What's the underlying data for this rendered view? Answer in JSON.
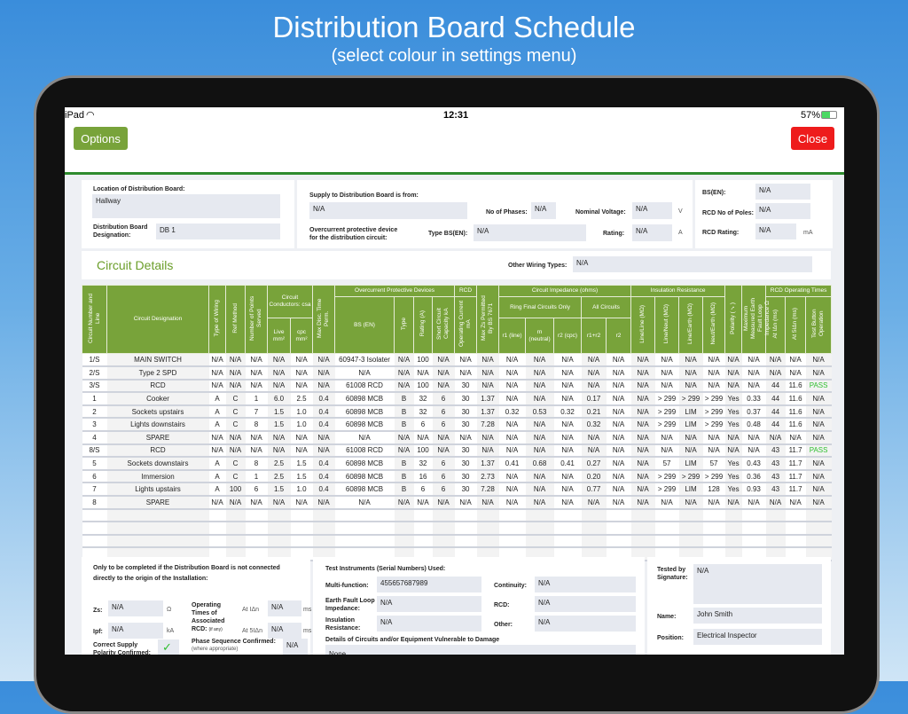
{
  "banner": {
    "title": "Distribution Board Schedule",
    "subtitle": "(select colour in settings menu)"
  },
  "status": {
    "device": "iPad",
    "time": "12:31",
    "battery": "57%",
    "battery_level": 57
  },
  "toolbar": {
    "options": "Options",
    "close": "Close",
    "accent": "#78a33a",
    "close_color": "#ee1c1c"
  },
  "board": {
    "location_label": "Location of Distribution Board:",
    "location": "Hallway",
    "designation_label": "Distribution Board Designation:",
    "designation": "DB 1",
    "supply_label": "Supply to Distribution Board is from:",
    "supply": "N/A",
    "phases_label": "No of Phases:",
    "phases": "N/A",
    "voltage_label": "Nominal Voltage:",
    "voltage": "N/A",
    "voltage_unit": "V",
    "ocpd_label": "Overcurrent protective device for the distribution circuit:",
    "type_label": "Type BS(EN):",
    "type": "N/A",
    "rating_label": "Rating:",
    "rating": "N/A",
    "rating_unit": "A",
    "bs_label": "BS(EN):",
    "bs": "N/A",
    "rcd_poles_label": "RCD No of Poles:",
    "rcd_poles": "N/A",
    "rcd_rating_label": "RCD Rating:",
    "rcd_rating": "N/A",
    "rcd_rating_unit": "mA"
  },
  "circuit_details": {
    "title": "Circuit Details",
    "other_label": "Other Wiring Types:",
    "other": "N/A"
  },
  "table": {
    "groups": {
      "conductors": "Circuit Conductors: csa",
      "ocpd": "Overcurrent Protective Devices",
      "rcd": "RCD",
      "impedance": "Circuit Impedance (ohms)",
      "ring": "Ring Final Circuits Only",
      "all": "All Circuits",
      "insulation": "Insulation Resistance",
      "rcd_times": "RCD Operating Times"
    },
    "headers": [
      "Circuit Number and Line",
      "Circuit Designation",
      "Type of Wiring",
      "Ref Method",
      "Number of Points Served",
      "Live mm²",
      "cpc mm²",
      "Max Disc. Time Perm.",
      "BS (EN)",
      "Type",
      "Rating (A)",
      "Short Circuit Capacity kA",
      "Operating Current mA",
      "Max Zs Permitted By BS 7671",
      "r1 (line)",
      "rn (neutral)",
      "r2 (cpc)",
      "r1+r2",
      "r2",
      "Line/Line (MΩ)",
      "Line/Neut (MΩ)",
      "Line/Earth (MΩ)",
      "Neut/Earth (MΩ)",
      "Polarity (✓)",
      "Maximum Measured Earth Fault Loop Impedance Ω",
      "At IΔn (ms)",
      "At 5IΔn (ms)",
      "Test Button Operation"
    ],
    "rows": [
      [
        "1/S",
        "MAIN SWITCH",
        "N/A",
        "N/A",
        "N/A",
        "N/A",
        "N/A",
        "N/A",
        "60947-3 Isolater",
        "N/A",
        "100",
        "N/A",
        "N/A",
        "N/A",
        "N/A",
        "N/A",
        "N/A",
        "N/A",
        "N/A",
        "N/A",
        "N/A",
        "N/A",
        "N/A",
        "N/A",
        "N/A",
        "N/A",
        "N/A",
        "N/A"
      ],
      [
        "2/S",
        "Type 2 SPD",
        "N/A",
        "N/A",
        "N/A",
        "N/A",
        "N/A",
        "N/A",
        "N/A",
        "N/A",
        "N/A",
        "N/A",
        "N/A",
        "N/A",
        "N/A",
        "N/A",
        "N/A",
        "N/A",
        "N/A",
        "N/A",
        "N/A",
        "N/A",
        "N/A",
        "N/A",
        "N/A",
        "N/A",
        "N/A",
        "N/A"
      ],
      [
        "3/S",
        "RCD",
        "N/A",
        "N/A",
        "N/A",
        "N/A",
        "N/A",
        "N/A",
        "61008 RCD",
        "N/A",
        "100",
        "N/A",
        "30",
        "N/A",
        "N/A",
        "N/A",
        "N/A",
        "N/A",
        "N/A",
        "N/A",
        "N/A",
        "N/A",
        "N/A",
        "N/A",
        "N/A",
        "44",
        "11.6",
        "PASS"
      ],
      [
        "1",
        "Cooker",
        "A",
        "C",
        "1",
        "6.0",
        "2.5",
        "0.4",
        "60898 MCB",
        "B",
        "32",
        "6",
        "30",
        "1.37",
        "N/A",
        "N/A",
        "N/A",
        "0.17",
        "N/A",
        "N/A",
        "> 299",
        "> 299",
        "> 299",
        "Yes",
        "0.33",
        "44",
        "11.6",
        "N/A"
      ],
      [
        "2",
        "Sockets upstairs",
        "A",
        "C",
        "7",
        "1.5",
        "1.0",
        "0.4",
        "60898 MCB",
        "B",
        "32",
        "6",
        "30",
        "1.37",
        "0.32",
        "0.53",
        "0.32",
        "0.21",
        "N/A",
        "N/A",
        "> 299",
        "LIM",
        "> 299",
        "Yes",
        "0.37",
        "44",
        "11.6",
        "N/A"
      ],
      [
        "3",
        "Lights downstairs",
        "A",
        "C",
        "8",
        "1.5",
        "1.0",
        "0.4",
        "60898 MCB",
        "B",
        "6",
        "6",
        "30",
        "7.28",
        "N/A",
        "N/A",
        "N/A",
        "0.32",
        "N/A",
        "N/A",
        "> 299",
        "LIM",
        "> 299",
        "Yes",
        "0.48",
        "44",
        "11.6",
        "N/A"
      ],
      [
        "4",
        "SPARE",
        "N/A",
        "N/A",
        "N/A",
        "N/A",
        "N/A",
        "N/A",
        "N/A",
        "N/A",
        "N/A",
        "N/A",
        "N/A",
        "N/A",
        "N/A",
        "N/A",
        "N/A",
        "N/A",
        "N/A",
        "N/A",
        "N/A",
        "N/A",
        "N/A",
        "N/A",
        "N/A",
        "N/A",
        "N/A",
        "N/A"
      ],
      [
        "8/S",
        "RCD",
        "N/A",
        "N/A",
        "N/A",
        "N/A",
        "N/A",
        "N/A",
        "61008 RCD",
        "N/A",
        "100",
        "N/A",
        "30",
        "N/A",
        "N/A",
        "N/A",
        "N/A",
        "N/A",
        "N/A",
        "N/A",
        "N/A",
        "N/A",
        "N/A",
        "N/A",
        "N/A",
        "43",
        "11.7",
        "PASS"
      ],
      [
        "5",
        "Sockets downstairs",
        "A",
        "C",
        "8",
        "2.5",
        "1.5",
        "0.4",
        "60898 MCB",
        "B",
        "32",
        "6",
        "30",
        "1.37",
        "0.41",
        "0.68",
        "0.41",
        "0.27",
        "N/A",
        "N/A",
        "57",
        "LIM",
        "57",
        "Yes",
        "0.43",
        "43",
        "11.7",
        "N/A"
      ],
      [
        "6",
        "Immersion",
        "A",
        "C",
        "1",
        "2.5",
        "1.5",
        "0.4",
        "60898 MCB",
        "B",
        "16",
        "6",
        "30",
        "2.73",
        "N/A",
        "N/A",
        "N/A",
        "0.20",
        "N/A",
        "N/A",
        "> 299",
        "> 299",
        "> 299",
        "Yes",
        "0.36",
        "43",
        "11.7",
        "N/A"
      ],
      [
        "7",
        "Lights upstairs",
        "A",
        "100",
        "6",
        "1.5",
        "1.0",
        "0.4",
        "60898 MCB",
        "B",
        "6",
        "6",
        "30",
        "7.28",
        "N/A",
        "N/A",
        "N/A",
        "0.77",
        "N/A",
        "N/A",
        "> 299",
        "LIM",
        "128",
        "Yes",
        "0.93",
        "43",
        "11.7",
        "N/A"
      ],
      [
        "8",
        "SPARE",
        "N/A",
        "N/A",
        "N/A",
        "N/A",
        "N/A",
        "N/A",
        "N/A",
        "N/A",
        "N/A",
        "N/A",
        "N/A",
        "N/A",
        "N/A",
        "N/A",
        "N/A",
        "N/A",
        "N/A",
        "N/A",
        "N/A",
        "N/A",
        "N/A",
        "N/A",
        "N/A",
        "N/A",
        "N/A",
        "N/A"
      ]
    ]
  },
  "origin": {
    "note": "Only to be completed if the Distribution Board is not connected directly to the origin of the Installation:",
    "zs_label": "Zs:",
    "zs": "N/A",
    "zs_unit": "Ω",
    "ipf_label": "Ipf:",
    "ipf": "N/A",
    "ipf_unit": "kA",
    "op_label": "Operating Times of Associated RCD:",
    "op_sub": "(if any)",
    "at_in_label": "At IΔn",
    "at_in": "N/A",
    "at_5in_label": "At 5IΔn",
    "at_5in": "N/A",
    "ms": "ms",
    "polarity_label": "Correct Supply Polarity Confirmed:",
    "polarity_checked": true,
    "phase_label": "Phase Sequence Confirmed:",
    "phase_sub": "(where appropriate)",
    "phase": "N/A"
  },
  "instruments": {
    "title": "Test Instruments (Serial Numbers) Used:",
    "multi_label": "Multi-function:",
    "multi": "455657687989",
    "efli_label": "Earth Fault Loop Impedance:",
    "efli": "N/A",
    "ins_label": "Insulation Resistance:",
    "ins": "N/A",
    "cont_label": "Continuity:",
    "cont": "N/A",
    "rcd_label": "RCD:",
    "rcd": "N/A",
    "other_label": "Other:",
    "other": "N/A",
    "vuln_label": "Details of Circuits and/or Equipment Vulnerable to Damage",
    "vuln": "None"
  },
  "signoff": {
    "sig_label": "Tested by Signature:",
    "sig": "N/A",
    "name_label": "Name:",
    "name": "John Smith",
    "pos_label": "Position:",
    "pos": "Electrical Inspector"
  }
}
